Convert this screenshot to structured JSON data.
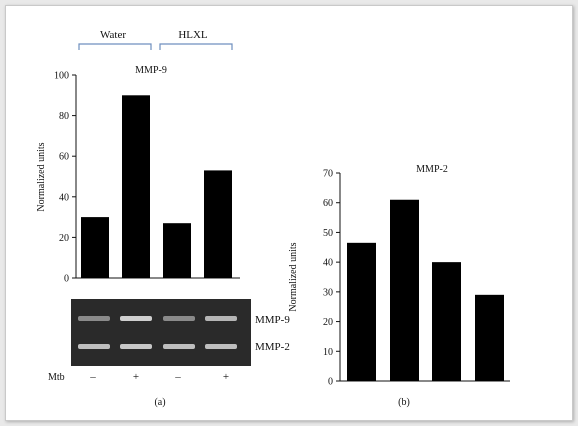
{
  "figure": {
    "panel_a_label": "(a)",
    "panel_b_label": "(b)",
    "group_labels": [
      "Water",
      "HLXL"
    ],
    "mtb_label": "Mtb",
    "mtb_signs": [
      "–",
      "+",
      "–",
      "+"
    ],
    "gel_band_labels": [
      "MMP-9",
      "MMP-2"
    ],
    "colors": {
      "bar": "#000000",
      "bracket": "#6f8fbf",
      "gel_bg": "#2a2a2a",
      "band": "#d8d8d8"
    }
  },
  "chart_data": [
    {
      "type": "bar",
      "title": "MMP-9",
      "ylabel": "Normalized units",
      "xlabel": "",
      "ylim": [
        0,
        100
      ],
      "yticks": [
        "0",
        "20",
        "40",
        "60",
        "80",
        "100"
      ],
      "categories": [
        "Water –",
        "Water +",
        "HLXL –",
        "HLXL +"
      ],
      "values": [
        30,
        90,
        27,
        53
      ],
      "grid": false
    },
    {
      "type": "bar",
      "title": "MMP-2",
      "ylabel": "Normalized units",
      "xlabel": "",
      "ylim": [
        0,
        70
      ],
      "yticks": [
        "0",
        "10",
        "20",
        "30",
        "40",
        "50",
        "60",
        "70"
      ],
      "categories": [
        "Water –",
        "Water +",
        "HLXL –",
        "HLXL +"
      ],
      "values": [
        46.5,
        61,
        40,
        29
      ],
      "grid": false
    }
  ]
}
